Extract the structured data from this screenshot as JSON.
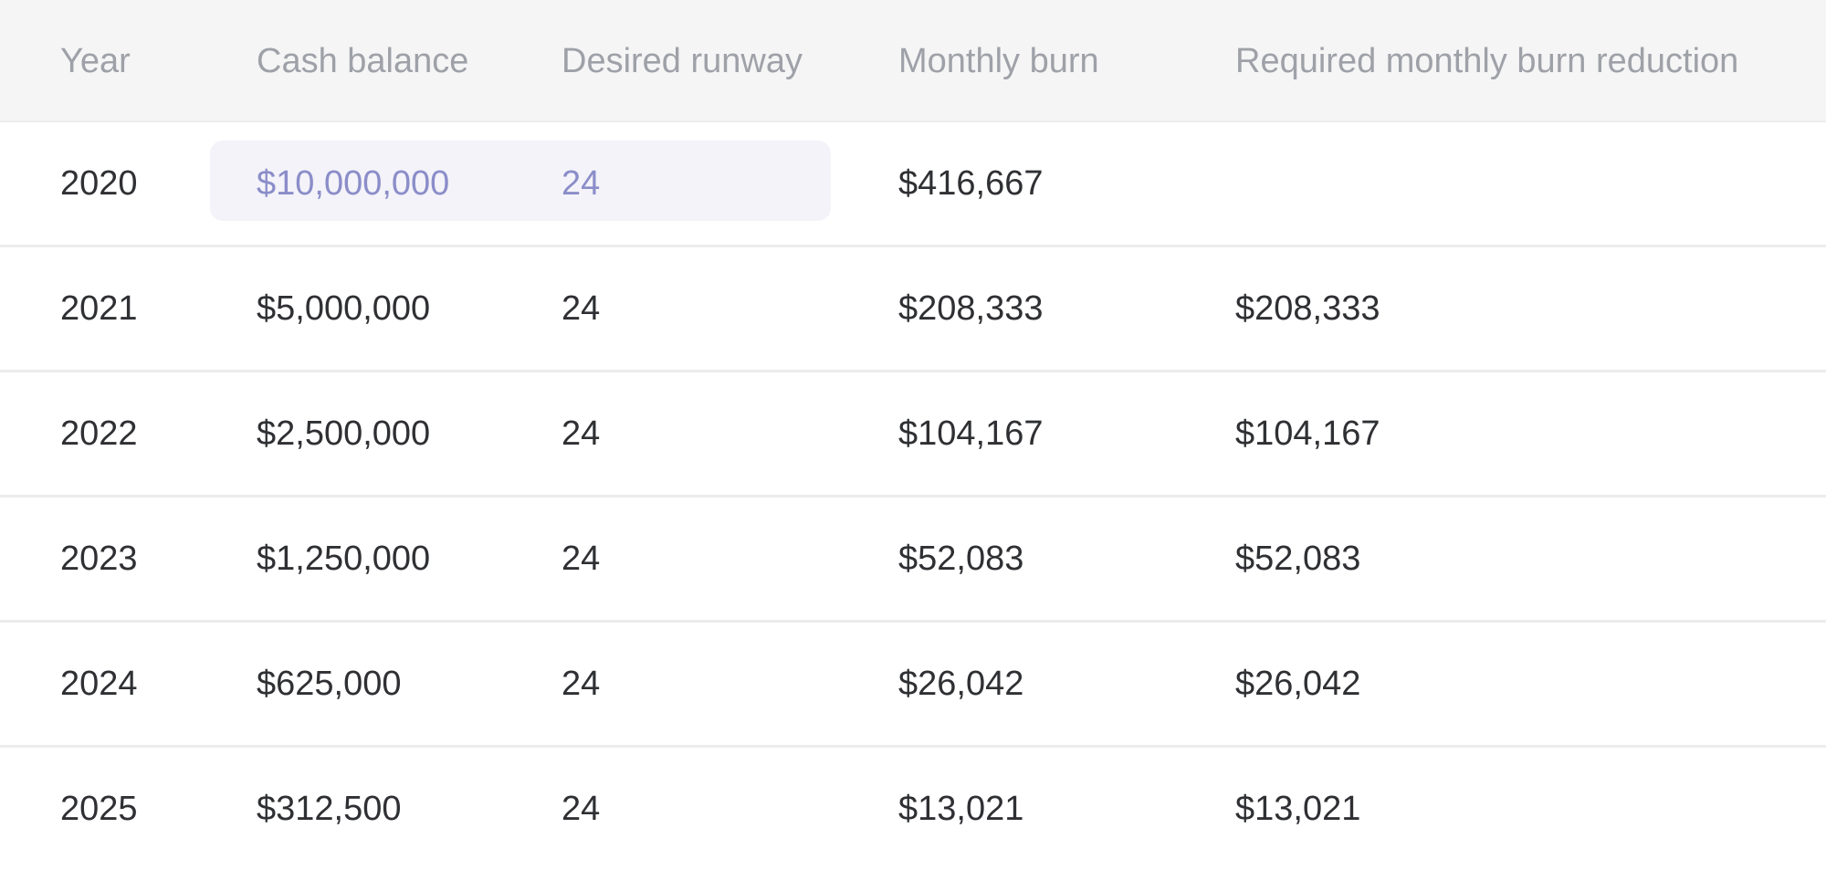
{
  "columns": {
    "year": "Year",
    "cash_balance": "Cash balance",
    "desired_runway": "Desired runway",
    "monthly_burn": "Monthly burn",
    "required_reduction": "Required monthly burn reduction"
  },
  "rows": [
    {
      "year": "2020",
      "cash_balance": "$10,000,000",
      "desired_runway": "24",
      "monthly_burn": "$416,667",
      "required_reduction": ""
    },
    {
      "year": "2021",
      "cash_balance": "$5,000,000",
      "desired_runway": "24",
      "monthly_burn": "$208,333",
      "required_reduction": "$208,333"
    },
    {
      "year": "2022",
      "cash_balance": "$2,500,000",
      "desired_runway": "24",
      "monthly_burn": "$104,167",
      "required_reduction": "$104,167"
    },
    {
      "year": "2023",
      "cash_balance": "$1,250,000",
      "desired_runway": "24",
      "monthly_burn": "$52,083",
      "required_reduction": "$52,083"
    },
    {
      "year": "2024",
      "cash_balance": "$625,000",
      "desired_runway": "24",
      "monthly_burn": "$26,042",
      "required_reduction": "$26,042"
    },
    {
      "year": "2025",
      "cash_balance": "$312,500",
      "desired_runway": "24",
      "monthly_burn": "$13,021",
      "required_reduction": "$13,021"
    }
  ],
  "colors": {
    "header_bg": "#f5f5f6",
    "header_text": "#9fa1a8",
    "body_text": "#2f3033",
    "input_text": "#8b8dc9",
    "input_bg": "#f3f3f9",
    "divider": "#ececee"
  }
}
